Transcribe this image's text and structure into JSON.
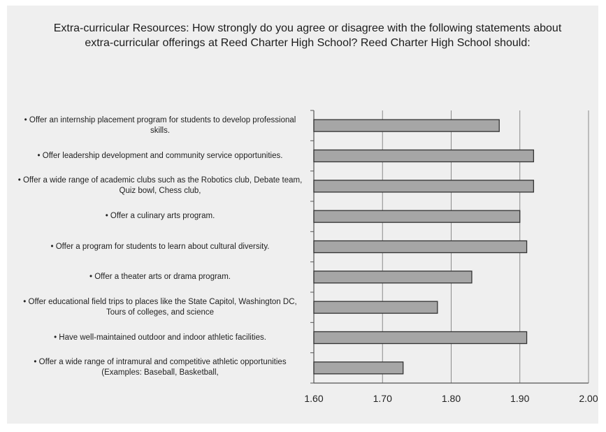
{
  "chart_data": {
    "type": "bar",
    "orientation": "horizontal",
    "title": "Extra-curricular Resources: How strongly do you agree or disagree with the following statements about extra-curricular offerings at Reed Charter High School?  Reed Charter High School should:",
    "categories": [
      "• Offer an internship placement program for students to develop professional skills.",
      "• Offer leadership development and community service opportunities.",
      "• Offer a wide range of academic clubs such as the Robotics club, Debate team, Quiz bowl, Chess club,",
      "• Offer a culinary arts program.",
      "• Offer a program for students to learn about cultural diversity.",
      "• Offer a theater arts or drama program.",
      "• Offer educational field trips to places like the State Capitol, Washington DC, Tours of colleges, and science",
      "• Have well-maintained outdoor and indoor athletic facilities.",
      "• Offer a wide range of intramural and competitive athletic opportunities (Examples: Baseball, Basketball,"
    ],
    "values": [
      1.87,
      1.92,
      1.92,
      1.9,
      1.91,
      1.83,
      1.78,
      1.91,
      1.73
    ],
    "xlim": [
      1.6,
      2.0
    ],
    "xticks": [
      "1.60",
      "1.70",
      "1.80",
      "1.90",
      "2.00"
    ],
    "grid": true,
    "bar_color": "#a6a6a6",
    "xlabel": "",
    "ylabel": ""
  }
}
